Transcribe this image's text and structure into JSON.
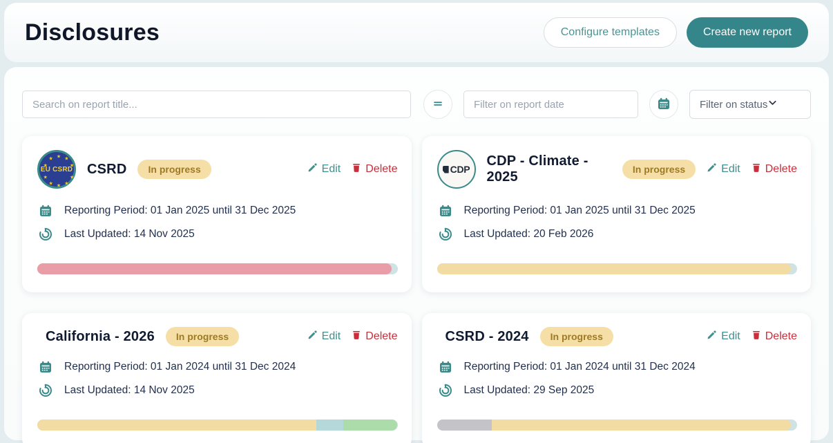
{
  "page_title": "Disclosures",
  "header": {
    "configure_templates": "Configure templates",
    "create_new_report": "Create new report"
  },
  "filters": {
    "search_placeholder": "Search on report title...",
    "date_placeholder": "Filter on report date",
    "status_label": "Filter on status"
  },
  "actions": {
    "edit": "Edit",
    "delete": "Delete"
  },
  "cards": [
    {
      "title": "CSRD",
      "status": "In progress",
      "logo_text": "EU CSRD",
      "reporting_period": "Reporting Period: 01 Jan 2025 until 31 Dec 2025",
      "last_updated": "Last Updated: 14 Nov 2025",
      "progress": [
        {
          "color": "#e99da6",
          "pct": 98.3
        }
      ]
    },
    {
      "title": "CDP - Climate - 2025",
      "status": "In progress",
      "logo_text": "CDP",
      "reporting_period": "Reporting Period: 01 Jan 2025 until 31 Dec 2025",
      "last_updated": "Last Updated: 20 Feb 2026",
      "progress": [
        {
          "color": "#f3dba4",
          "pct": 98.3
        }
      ]
    },
    {
      "title": "California - 2026",
      "status": "In progress",
      "reporting_period": "Reporting Period: 01 Jan 2024 until 31 Dec 2024",
      "last_updated": "Last Updated: 14 Nov 2025",
      "progress": [
        {
          "color": "#f3dba4",
          "pct": 77.5
        },
        {
          "color": "#b5d8da",
          "pct": 7.5
        },
        {
          "color": "#abdcaa",
          "pct": 15
        }
      ]
    },
    {
      "title": "CSRD - 2024",
      "status": "In progress",
      "reporting_period": "Reporting Period: 01 Jan 2024 until 31 Dec 2024",
      "last_updated": "Last Updated: 29 Sep 2025",
      "progress": [
        {
          "color": "#c4c4c8",
          "pct": 15.3
        },
        {
          "color": "#f3dba4",
          "pct": 83
        }
      ]
    }
  ],
  "colors": {
    "accent_teal": "#35868a",
    "badge_bg": "#f6dfa7",
    "badge_text": "#9d7a23",
    "delete_red": "#c62f3b",
    "progress_track": "#cfe3e5"
  }
}
